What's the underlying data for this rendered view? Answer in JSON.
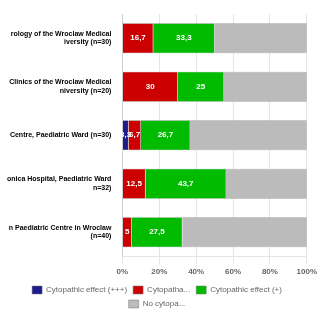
{
  "chart_data": {
    "type": "bar",
    "orientation": "horizontal",
    "stacked": true,
    "grid": true,
    "legend": "bottom",
    "data_labels": true,
    "categories": [
      "rology of the Wroclaw Medical\niversity (n=30)",
      "Clinics of the Wroclaw Medical\nniversity (n=20)",
      "Centre, Paediatric Ward (n=30)",
      "onica Hospital, Paediatric Ward\nn=32)",
      "n Paediatric Centre in Wroclaw\n(n=40)"
    ],
    "series": [
      {
        "name": "Cytopathic effect (+++)",
        "color": "#1C1C8C",
        "values": [
          0,
          0,
          3.3,
          0,
          0
        ],
        "value_labels": [
          null,
          null,
          "3,3",
          null,
          null
        ]
      },
      {
        "name": "Cytopatha...",
        "color": "#CC0000",
        "values": [
          16.7,
          30,
          6.7,
          12.5,
          5
        ],
        "value_labels": [
          "16,7",
          "30",
          "6,7",
          "12,5",
          "5"
        ]
      },
      {
        "name": "Cytopathic effect (+)",
        "color": "#00BB00",
        "values": [
          33.3,
          25,
          26.7,
          43.7,
          27.5
        ],
        "value_labels": [
          "33,3",
          "25",
          "26,7",
          "43,7",
          "27,5"
        ]
      },
      {
        "name": "No cytopa...",
        "color": "#BBBBBB",
        "values": [
          50,
          45,
          63.3,
          43.8,
          67.5
        ],
        "data_labels": false
      }
    ],
    "xlim": [
      0,
      100
    ],
    "xticks": [
      {
        "value": 0,
        "label": "0%"
      },
      {
        "value": 20,
        "label": "20%"
      },
      {
        "value": 40,
        "label": "40%"
      },
      {
        "value": 60,
        "label": "60%"
      },
      {
        "value": 80,
        "label": "80%"
      },
      {
        "value": 100,
        "label": "100%"
      }
    ]
  }
}
